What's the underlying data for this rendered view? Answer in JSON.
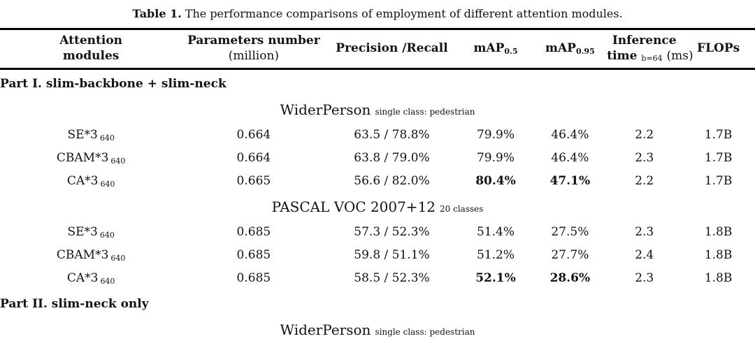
{
  "caption": {
    "tag": "Table 1.",
    "text": "The performance comparisons of employment of different attention modules."
  },
  "header": {
    "attention": {
      "l1": "Attention",
      "l2": "modules"
    },
    "parameters": {
      "l1": "Parameters number",
      "l2": "(million)"
    },
    "precision": "Precision /Recall",
    "map50": {
      "base": "mAP",
      "sub": "0.5"
    },
    "map95": {
      "base": "mAP",
      "sub": "0.95"
    },
    "inference": {
      "l1": "Inference",
      "word": "time",
      "sub": "b=64",
      "unit": "(ms)"
    },
    "flops": "FLOPs"
  },
  "parts": [
    {
      "label": "Part I. slim-backbone + slim-neck",
      "datasets": [
        {
          "name": "WiderPerson",
          "note": "single class: pedestrian",
          "rows": [
            {
              "module": "SE*3",
              "size": "640",
              "params": "0.664",
              "pr": "63.5 / 78.8%",
              "map50": "79.9%",
              "map95": "46.4%",
              "time": "2.2",
              "flops": "1.7B"
            },
            {
              "module": "CBAM*3",
              "size": "640",
              "params": "0.664",
              "pr": "63.8 / 79.0%",
              "map50": "79.9%",
              "map95": "46.4%",
              "time": "2.3",
              "flops": "1.7B"
            },
            {
              "module": "CA*3",
              "size": "640",
              "params": "0.665",
              "pr": "56.6 / 82.0%",
              "map50": "80.4%",
              "map95": "47.1%",
              "time": "2.2",
              "flops": "1.7B"
            }
          ]
        },
        {
          "name": "PASCAL VOC 2007+12",
          "note": "20 classes",
          "rows": [
            {
              "module": "SE*3",
              "size": "640",
              "params": "0.685",
              "pr": "57.3 / 52.3%",
              "map50": "51.4%",
              "map95": "27.5%",
              "time": "2.3",
              "flops": "1.8B"
            },
            {
              "module": "CBAM*3",
              "size": "640",
              "params": "0.685",
              "pr": "59.8 / 51.1%",
              "map50": "51.2%",
              "map95": "27.7%",
              "time": "2.4",
              "flops": "1.8B"
            },
            {
              "module": "CA*3",
              "size": "640",
              "params": "0.685",
              "pr": "58.5 / 52.3%",
              "map50": "52.1%",
              "map95": "28.6%",
              "time": "2.3",
              "flops": "1.8B"
            }
          ]
        }
      ]
    },
    {
      "label": "Part II. slim-neck only",
      "datasets": [
        {
          "name": "WiderPerson",
          "note": "single class: pedestrian"
        }
      ]
    }
  ]
}
